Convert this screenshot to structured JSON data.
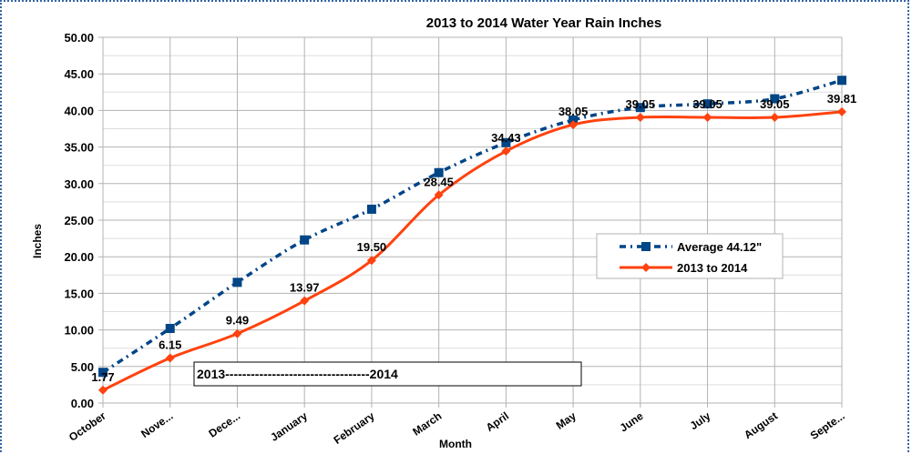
{
  "chart_data": {
    "type": "line",
    "title": "2013 to 2014 Water Year Rain Inches",
    "xlabel": "Month",
    "ylabel": "Inches",
    "ylim": [
      0,
      50
    ],
    "ytick_step": 5,
    "ytick_labels": [
      "0.00",
      "5.00",
      "10.00",
      "15.00",
      "20.00",
      "25.00",
      "30.00",
      "35.00",
      "40.00",
      "45.00",
      "50.00"
    ],
    "grid": true,
    "legend_position": "right",
    "categories": [
      "October",
      "Nove...",
      "Dece...",
      "January",
      "February",
      "March",
      "April",
      "May",
      "June",
      "July",
      "August",
      "Septe..."
    ],
    "series": [
      {
        "name": "Average 44.12\"",
        "color": "#004586",
        "style": "dash-dot",
        "marker": "square",
        "values": [
          4.2,
          10.2,
          16.5,
          22.3,
          26.5,
          31.5,
          35.6,
          38.7,
          40.4,
          40.9,
          41.6,
          44.12
        ]
      },
      {
        "name": "2013 to 2014",
        "color": "#ff420e",
        "style": "solid",
        "marker": "diamond",
        "values": [
          1.77,
          6.15,
          9.49,
          13.97,
          19.5,
          28.45,
          34.43,
          38.05,
          39.05,
          39.05,
          39.05,
          39.81
        ],
        "data_labels": [
          "1.77",
          "6.15",
          "9.49",
          "13.97",
          "19.50",
          "28.45",
          "34.43",
          "38.05",
          "39.05",
          "39.05",
          "39.05",
          "39.81"
        ]
      }
    ],
    "annotation": "2013----------------------------------2014"
  }
}
